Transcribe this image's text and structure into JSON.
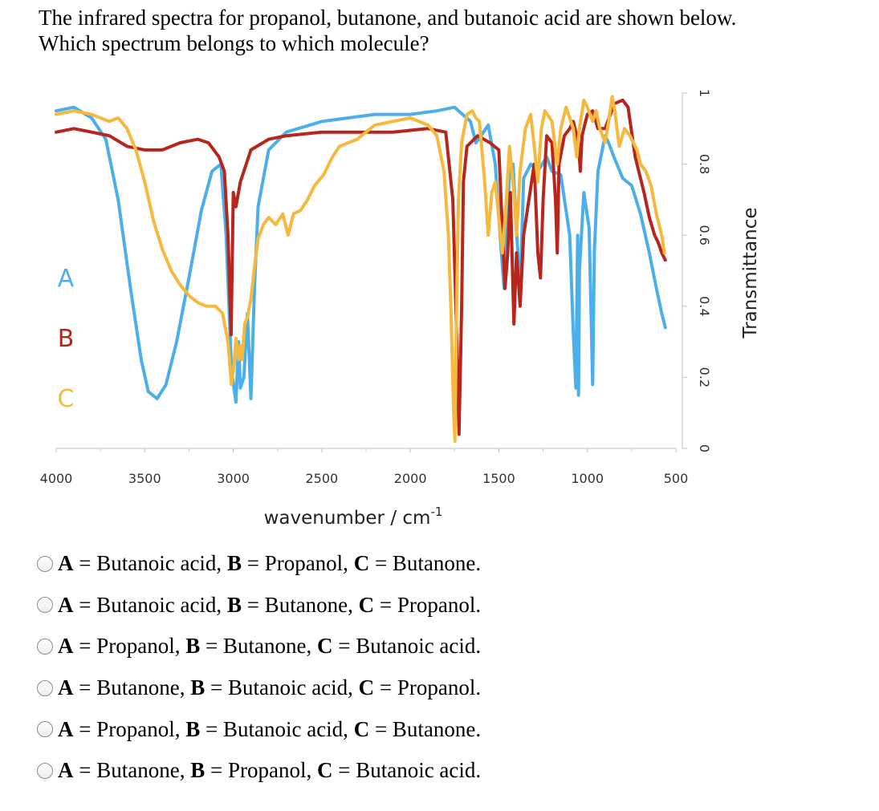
{
  "question": {
    "line1": "The infrared spectra for propanol, butanone, and butanoic acid are shown below.",
    "line2": "Which spectrum belongs to which molecule?"
  },
  "chart_data": {
    "type": "line",
    "xlabel_base": "wavenumber / cm",
    "xlabel_sup": "-1",
    "ylabel": "Transmittance",
    "xlim": [
      4000,
      500
    ],
    "ylim": [
      0,
      1
    ],
    "x_ticks": [
      "4000",
      "3500",
      "3000",
      "2500",
      "2000",
      "1500",
      "1000",
      "500"
    ],
    "y_ticks": [
      "0",
      "0.2",
      "0.4",
      "0.6",
      "0.8",
      "1"
    ],
    "legend": [
      "A",
      "B",
      "C"
    ],
    "series": [
      {
        "name": "A",
        "color": "#4DAFEA",
        "points": [
          [
            4000,
            0.95
          ],
          [
            3900,
            0.96
          ],
          [
            3800,
            0.93
          ],
          [
            3720,
            0.87
          ],
          [
            3650,
            0.7
          ],
          [
            3580,
            0.45
          ],
          [
            3520,
            0.25
          ],
          [
            3480,
            0.16
          ],
          [
            3430,
            0.14
          ],
          [
            3380,
            0.18
          ],
          [
            3320,
            0.3
          ],
          [
            3250,
            0.48
          ],
          [
            3180,
            0.67
          ],
          [
            3120,
            0.78
          ],
          [
            3070,
            0.8
          ],
          [
            3040,
            0.6
          ],
          [
            3010,
            0.22
          ],
          [
            2985,
            0.13
          ],
          [
            2970,
            0.3
          ],
          [
            2960,
            0.17
          ],
          [
            2940,
            0.2
          ],
          [
            2920,
            0.38
          ],
          [
            2900,
            0.14
          ],
          [
            2880,
            0.45
          ],
          [
            2860,
            0.68
          ],
          [
            2800,
            0.84
          ],
          [
            2700,
            0.89
          ],
          [
            2500,
            0.92
          ],
          [
            2200,
            0.94
          ],
          [
            2000,
            0.94
          ],
          [
            1850,
            0.95
          ],
          [
            1750,
            0.96
          ],
          [
            1660,
            0.92
          ],
          [
            1630,
            0.86
          ],
          [
            1600,
            0.88
          ],
          [
            1560,
            0.91
          ],
          [
            1520,
            0.8
          ],
          [
            1490,
            0.58
          ],
          [
            1470,
            0.45
          ],
          [
            1455,
            0.6
          ],
          [
            1440,
            0.78
          ],
          [
            1420,
            0.8
          ],
          [
            1380,
            0.43
          ],
          [
            1360,
            0.76
          ],
          [
            1320,
            0.8
          ],
          [
            1280,
            0.78
          ],
          [
            1230,
            0.82
          ],
          [
            1200,
            0.78
          ],
          [
            1150,
            0.77
          ],
          [
            1100,
            0.6
          ],
          [
            1080,
            0.33
          ],
          [
            1065,
            0.17
          ],
          [
            1055,
            0.6
          ],
          [
            1050,
            0.15
          ],
          [
            1045,
            0.5
          ],
          [
            1020,
            0.72
          ],
          [
            990,
            0.62
          ],
          [
            970,
            0.18
          ],
          [
            960,
            0.56
          ],
          [
            940,
            0.78
          ],
          [
            900,
            0.88
          ],
          [
            880,
            0.86
          ],
          [
            850,
            0.82
          ],
          [
            800,
            0.76
          ],
          [
            750,
            0.74
          ],
          [
            700,
            0.66
          ],
          [
            650,
            0.55
          ],
          [
            610,
            0.45
          ],
          [
            580,
            0.38
          ],
          [
            560,
            0.34
          ]
        ]
      },
      {
        "name": "B",
        "color": "#B7261C",
        "points": [
          [
            4000,
            0.89
          ],
          [
            3900,
            0.9
          ],
          [
            3800,
            0.89
          ],
          [
            3700,
            0.88
          ],
          [
            3600,
            0.85
          ],
          [
            3500,
            0.84
          ],
          [
            3400,
            0.84
          ],
          [
            3300,
            0.86
          ],
          [
            3200,
            0.87
          ],
          [
            3140,
            0.86
          ],
          [
            3080,
            0.82
          ],
          [
            3050,
            0.78
          ],
          [
            3030,
            0.6
          ],
          [
            3012,
            0.32
          ],
          [
            3000,
            0.72
          ],
          [
            2985,
            0.68
          ],
          [
            2960,
            0.75
          ],
          [
            2900,
            0.84
          ],
          [
            2800,
            0.87
          ],
          [
            2700,
            0.88
          ],
          [
            2500,
            0.89
          ],
          [
            2300,
            0.89
          ],
          [
            2100,
            0.89
          ],
          [
            1900,
            0.9
          ],
          [
            1800,
            0.89
          ],
          [
            1760,
            0.7
          ],
          [
            1740,
            0.35
          ],
          [
            1725,
            0.04
          ],
          [
            1710,
            0.4
          ],
          [
            1700,
            0.75
          ],
          [
            1680,
            0.85
          ],
          [
            1620,
            0.88
          ],
          [
            1550,
            0.86
          ],
          [
            1500,
            0.84
          ],
          [
            1480,
            0.62
          ],
          [
            1465,
            0.45
          ],
          [
            1450,
            0.55
          ],
          [
            1435,
            0.72
          ],
          [
            1415,
            0.35
          ],
          [
            1400,
            0.55
          ],
          [
            1380,
            0.4
          ],
          [
            1360,
            0.6
          ],
          [
            1330,
            0.7
          ],
          [
            1300,
            0.8
          ],
          [
            1280,
            0.55
          ],
          [
            1265,
            0.48
          ],
          [
            1250,
            0.7
          ],
          [
            1230,
            0.88
          ],
          [
            1200,
            0.86
          ],
          [
            1180,
            0.7
          ],
          [
            1170,
            0.55
          ],
          [
            1160,
            0.8
          ],
          [
            1130,
            0.88
          ],
          [
            1100,
            0.9
          ],
          [
            1080,
            0.92
          ],
          [
            1050,
            0.86
          ],
          [
            1040,
            0.78
          ],
          [
            1030,
            0.88
          ],
          [
            1000,
            0.94
          ],
          [
            970,
            0.95
          ],
          [
            940,
            0.9
          ],
          [
            900,
            0.9
          ],
          [
            870,
            0.94
          ],
          [
            850,
            0.97
          ],
          [
            800,
            0.98
          ],
          [
            770,
            0.96
          ],
          [
            730,
            0.82
          ],
          [
            680,
            0.72
          ],
          [
            650,
            0.65
          ],
          [
            620,
            0.6
          ],
          [
            600,
            0.58
          ],
          [
            580,
            0.55
          ],
          [
            560,
            0.53
          ]
        ]
      },
      {
        "name": "C",
        "color": "#F4B93E",
        "points": [
          [
            4000,
            0.94
          ],
          [
            3900,
            0.95
          ],
          [
            3800,
            0.94
          ],
          [
            3700,
            0.92
          ],
          [
            3650,
            0.93
          ],
          [
            3600,
            0.9
          ],
          [
            3550,
            0.84
          ],
          [
            3500,
            0.75
          ],
          [
            3450,
            0.64
          ],
          [
            3400,
            0.56
          ],
          [
            3350,
            0.5
          ],
          [
            3300,
            0.46
          ],
          [
            3250,
            0.43
          ],
          [
            3200,
            0.41
          ],
          [
            3150,
            0.4
          ],
          [
            3100,
            0.4
          ],
          [
            3060,
            0.38
          ],
          [
            3030,
            0.3
          ],
          [
            3010,
            0.18
          ],
          [
            2995,
            0.24
          ],
          [
            2985,
            0.31
          ],
          [
            2970,
            0.25
          ],
          [
            2960,
            0.29
          ],
          [
            2950,
            0.25
          ],
          [
            2935,
            0.35
          ],
          [
            2920,
            0.37
          ],
          [
            2900,
            0.42
          ],
          [
            2880,
            0.51
          ],
          [
            2860,
            0.59
          ],
          [
            2830,
            0.63
          ],
          [
            2800,
            0.65
          ],
          [
            2760,
            0.63
          ],
          [
            2720,
            0.66
          ],
          [
            2690,
            0.6
          ],
          [
            2660,
            0.66
          ],
          [
            2620,
            0.67
          ],
          [
            2580,
            0.7
          ],
          [
            2540,
            0.74
          ],
          [
            2490,
            0.77
          ],
          [
            2440,
            0.82
          ],
          [
            2400,
            0.85
          ],
          [
            2350,
            0.86
          ],
          [
            2300,
            0.87
          ],
          [
            2250,
            0.89
          ],
          [
            2200,
            0.91
          ],
          [
            2100,
            0.92
          ],
          [
            2000,
            0.93
          ],
          [
            1900,
            0.91
          ],
          [
            1850,
            0.88
          ],
          [
            1810,
            0.78
          ],
          [
            1785,
            0.6
          ],
          [
            1770,
            0.38
          ],
          [
            1755,
            0.1
          ],
          [
            1748,
            0.02
          ],
          [
            1740,
            0.35
          ],
          [
            1728,
            0.7
          ],
          [
            1710,
            0.86
          ],
          [
            1680,
            0.94
          ],
          [
            1650,
            0.95
          ],
          [
            1630,
            0.93
          ],
          [
            1610,
            0.92
          ],
          [
            1580,
            0.75
          ],
          [
            1560,
            0.6
          ],
          [
            1540,
            0.72
          ],
          [
            1520,
            0.75
          ],
          [
            1500,
            0.65
          ],
          [
            1480,
            0.55
          ],
          [
            1460,
            0.68
          ],
          [
            1440,
            0.85
          ],
          [
            1415,
            0.72
          ],
          [
            1400,
            0.6
          ],
          [
            1380,
            0.78
          ],
          [
            1350,
            0.9
          ],
          [
            1320,
            0.94
          ],
          [
            1300,
            0.85
          ],
          [
            1280,
            0.75
          ],
          [
            1260,
            0.9
          ],
          [
            1240,
            0.95
          ],
          [
            1200,
            0.92
          ],
          [
            1170,
            0.8
          ],
          [
            1150,
            0.9
          ],
          [
            1120,
            0.96
          ],
          [
            1100,
            0.93
          ],
          [
            1080,
            0.9
          ],
          [
            1060,
            0.82
          ],
          [
            1045,
            0.9
          ],
          [
            1020,
            0.98
          ],
          [
            1000,
            0.96
          ],
          [
            970,
            0.92
          ],
          [
            950,
            0.95
          ],
          [
            930,
            0.9
          ],
          [
            900,
            0.86
          ],
          [
            880,
            0.92
          ],
          [
            860,
            0.99
          ],
          [
            845,
            0.95
          ],
          [
            820,
            0.85
          ],
          [
            790,
            0.9
          ],
          [
            760,
            0.88
          ],
          [
            720,
            0.84
          ],
          [
            700,
            0.8
          ],
          [
            670,
            0.78
          ],
          [
            640,
            0.74
          ],
          [
            610,
            0.66
          ],
          [
            580,
            0.6
          ],
          [
            565,
            0.55
          ]
        ]
      }
    ]
  },
  "options": [
    [
      "A",
      " = Butanoic acid, ",
      "B",
      " = Propanol, ",
      "C",
      " = Butanone."
    ],
    [
      "A",
      " = Butanoic acid, ",
      "B",
      " = Butanone, ",
      "C",
      " = Propanol."
    ],
    [
      "A",
      " = Propanol, ",
      "B",
      " = Butanone, ",
      "C",
      " = Butanoic acid."
    ],
    [
      "A",
      " = Butanone, ",
      "B",
      " = Butanoic acid, ",
      "C",
      " = Propanol."
    ],
    [
      "A",
      " = Propanol, ",
      "B",
      " = Butanoic acid, ",
      "C",
      " = Butanone."
    ],
    [
      "A",
      " = Butanone, ",
      "B",
      " = Propanol, ",
      "C",
      " = Butanoic acid."
    ]
  ]
}
